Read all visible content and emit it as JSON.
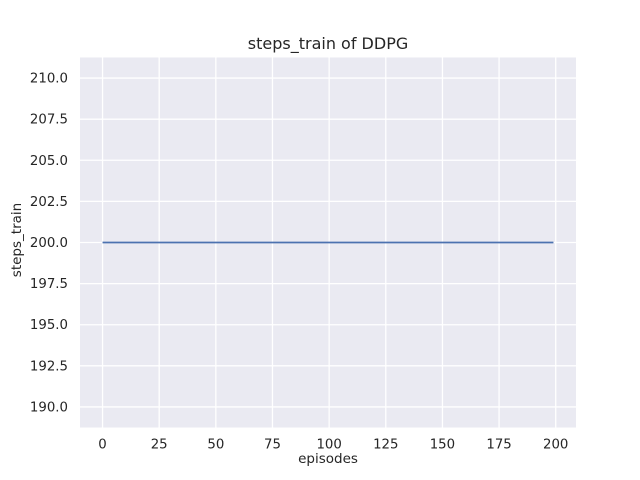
{
  "figure": {
    "background_color": "#ffffff"
  },
  "chart_data": {
    "type": "line",
    "title": "steps_train of DDPG",
    "xlabel": "episodes",
    "ylabel": "steps_train",
    "grid": true,
    "legend": false,
    "plot_background_color": "#eaeaf2",
    "grid_color": "#ffffff",
    "text_color": "#262626",
    "xlim": [
      -9.95,
      208.95
    ],
    "ylim": [
      188.75,
      211.25
    ],
    "xticks": {
      "values": [
        0,
        25,
        50,
        75,
        100,
        125,
        150,
        175,
        200
      ],
      "labels": [
        "0",
        "25",
        "50",
        "75",
        "100",
        "125",
        "150",
        "175",
        "200"
      ]
    },
    "yticks": {
      "values": [
        190.0,
        192.5,
        195.0,
        197.5,
        200.0,
        202.5,
        205.0,
        207.5,
        210.0
      ],
      "labels": [
        "190.0",
        "192.5",
        "195.0",
        "197.5",
        "200.0",
        "202.5",
        "205.0",
        "207.5",
        "210.0"
      ]
    },
    "series": [
      {
        "name": "steps_train",
        "color": "#4c72b0",
        "line_width": 1.8,
        "x": [
          0,
          199
        ],
        "y": [
          200,
          200
        ],
        "note": "constant value 200 across episodes 0-199"
      }
    ]
  }
}
